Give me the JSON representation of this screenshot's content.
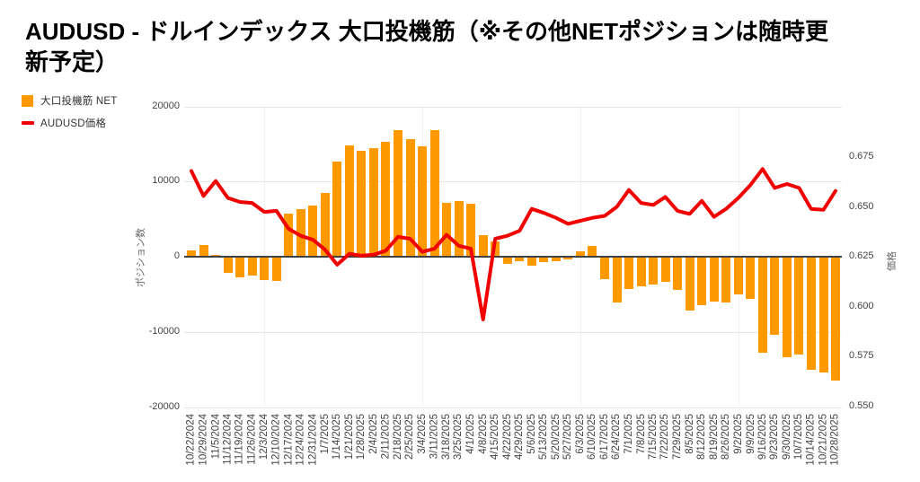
{
  "title": {
    "line1": "AUDUSD - ドルインデックス 大口投機筋（※その他NETポジションは随時更",
    "line2": "新予定）",
    "full": "AUDUSD - ドルインデックス 大口投機筋（※その他NETポジションは随時更新予定）"
  },
  "legend": {
    "items": [
      {
        "label": "大口投機筋 NET",
        "color": "#ff9900",
        "marker": "square"
      },
      {
        "label": "AUDUSD価格",
        "color": "#f10000",
        "marker": "line"
      }
    ]
  },
  "chart_data": {
    "type": "combo",
    "categories": [
      "10/22/2024",
      "10/29/2024",
      "11/5/2024",
      "11/12/2024",
      "11/19/2024",
      "11/26/2024",
      "12/3/2024",
      "12/10/2024",
      "12/17/2024",
      "12/24/2024",
      "12/31/2024",
      "1/7/2025",
      "1/14/2025",
      "1/21/2025",
      "1/28/2025",
      "2/4/2025",
      "2/11/2025",
      "2/18/2025",
      "2/25/2025",
      "3/4/2025",
      "3/11/2025",
      "3/18/2025",
      "3/25/2025",
      "4/1/2025",
      "4/8/2025",
      "4/15/2025",
      "4/22/2025",
      "4/29/2025",
      "5/6/2025",
      "5/13/2025",
      "5/20/2025",
      "5/27/2025",
      "6/3/2025",
      "6/10/2025",
      "6/17/2025",
      "6/24/2025",
      "7/1/2025",
      "7/8/2025",
      "7/15/2025",
      "7/22/2025",
      "7/29/2025",
      "8/5/2025",
      "8/12/2025",
      "8/19/2025",
      "8/26/2025",
      "9/2/2025",
      "9/9/2025",
      "9/16/2025",
      "9/23/2025",
      "9/30/2025",
      "10/7/2025",
      "10/14/2025",
      "10/21/2025",
      "10/28/2025"
    ],
    "series": [
      {
        "name": "大口投機筋 NET",
        "type": "bar",
        "axis": "left",
        "color": "#ff9900",
        "values": [
          900,
          1600,
          200,
          -2200,
          -2750,
          -2550,
          -3100,
          -3250,
          5700,
          6350,
          6800,
          8450,
          12650,
          14800,
          14100,
          14500,
          15300,
          16800,
          15650,
          14700,
          16850,
          7150,
          7450,
          7000,
          2900,
          2050,
          -950,
          -620,
          -1200,
          -750,
          -600,
          -400,
          700,
          1430,
          -3000,
          -6050,
          -4250,
          -3970,
          -3650,
          -3350,
          -4360,
          -7100,
          -6430,
          -5950,
          -6030,
          -5050,
          -5550,
          -12800,
          -10350,
          -13400,
          -13000,
          -15000,
          -15400,
          -16500
        ]
      },
      {
        "name": "AUDUSD価格",
        "type": "line",
        "axis": "right",
        "color": "#f10000",
        "values": [
          0.668,
          0.6555,
          0.663,
          0.6545,
          0.6525,
          0.652,
          0.6475,
          0.648,
          0.639,
          0.6355,
          0.6335,
          0.6285,
          0.621,
          0.6265,
          0.6255,
          0.626,
          0.628,
          0.635,
          0.634,
          0.6275,
          0.629,
          0.636,
          0.6305,
          0.629,
          0.5935,
          0.634,
          0.6355,
          0.638,
          0.649,
          0.647,
          0.6445,
          0.6415,
          0.643,
          0.6445,
          0.6455,
          0.65,
          0.6585,
          0.652,
          0.651,
          0.655,
          0.648,
          0.6465,
          0.653,
          0.645,
          0.649,
          0.6545,
          0.661,
          0.669,
          0.6595,
          0.6615,
          0.6595,
          0.649,
          0.6485,
          0.658
        ]
      }
    ],
    "left_axis": {
      "title": "ポジション数",
      "ticks": [
        20000,
        10000,
        0,
        -10000,
        -20000
      ],
      "range": [
        -20000,
        20000
      ]
    },
    "right_axis": {
      "title": "価格",
      "ticks": [
        0.675,
        0.65,
        0.625,
        0.6,
        0.575,
        0.55
      ],
      "range": [
        0.55,
        0.701
      ]
    },
    "grid": {
      "horizontal": true,
      "v_indices": [
        6,
        19,
        32,
        45
      ]
    },
    "colors": {
      "background": "#ffffff",
      "grid": "#e6e6e6",
      "v_grid": "#f1f1f1",
      "zero_line": "#424242",
      "tick_text": "#444444",
      "axis_title_text": "#666666",
      "title_text": "#000000"
    }
  }
}
